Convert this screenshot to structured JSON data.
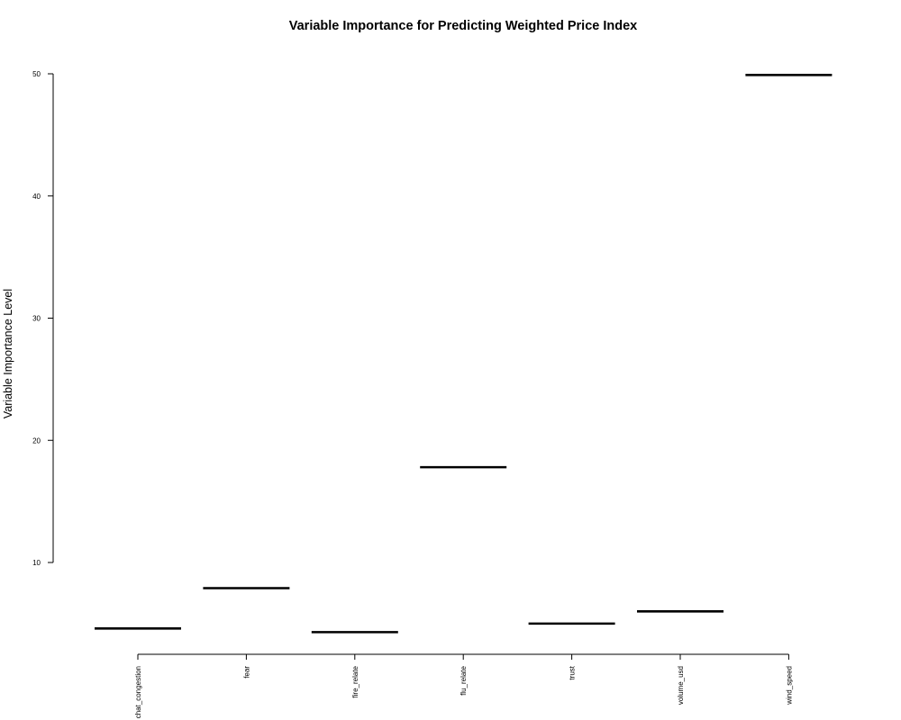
{
  "chart_data": {
    "type": "bar",
    "title": "Variable Importance for Predicting Weighted Price Index",
    "xlabel": "",
    "ylabel": "Variable Importance Level",
    "categories": [
      "chat_congestion",
      "fear",
      "fire_relate",
      "flu_relate",
      "trust",
      "volume_usd",
      "wind_speed"
    ],
    "values": [
      4.6,
      7.9,
      4.3,
      17.8,
      5.0,
      6.0,
      49.9
    ],
    "y_ticks": [
      "10",
      "20",
      "30",
      "40",
      "50"
    ],
    "ylim": [
      2.5,
      50
    ],
    "grid": false,
    "legend": "none",
    "colors": {
      "mark": "#000000",
      "axis": "#000000",
      "background": "#ffffff"
    }
  }
}
